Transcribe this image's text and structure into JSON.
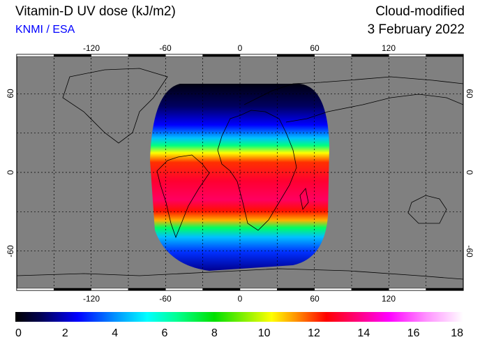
{
  "header": {
    "title": "Vitamin-D UV dose (kJ/m2)",
    "organization": "KNMI / ESA",
    "mode": "Cloud-modified",
    "date": "3 February 2022"
  },
  "map": {
    "projection": "lat-lon",
    "lon_ticks": [
      "-120",
      "-60",
      "0",
      "60",
      "120"
    ],
    "lat_ticks": [
      "60",
      "0",
      "-60"
    ],
    "ocean_land_color": "#808080",
    "coverage_region": "Europe / Africa / Atlantic (Meteosat disk)"
  },
  "colorbar": {
    "labels": [
      "0",
      "2",
      "4",
      "6",
      "8",
      "10",
      "12",
      "14",
      "16",
      "18"
    ],
    "min": 0,
    "max": 18,
    "stops": [
      {
        "v": 0,
        "c": "#000000"
      },
      {
        "v": 1,
        "c": "#000050"
      },
      {
        "v": 2.5,
        "c": "#0000ff"
      },
      {
        "v": 4,
        "c": "#0090ff"
      },
      {
        "v": 5.3,
        "c": "#00ffff"
      },
      {
        "v": 6.5,
        "c": "#00ff90"
      },
      {
        "v": 8,
        "c": "#00e000"
      },
      {
        "v": 10.3,
        "c": "#ffff00"
      },
      {
        "v": 11.3,
        "c": "#ff9000"
      },
      {
        "v": 12.5,
        "c": "#ff0000"
      },
      {
        "v": 13.8,
        "c": "#ff0080"
      },
      {
        "v": 15,
        "c": "#ff00ff"
      },
      {
        "v": 16.5,
        "c": "#ff90ff"
      },
      {
        "v": 18,
        "c": "#ffffff"
      }
    ]
  }
}
